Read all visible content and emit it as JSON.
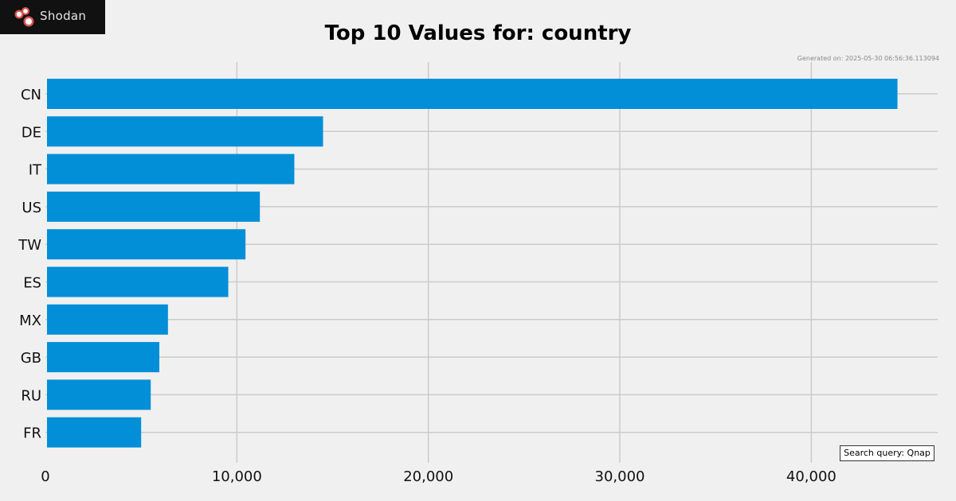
{
  "logo": {
    "text": "Shodan"
  },
  "generated_text": "Generated on: 2025-05-30 06:56:36.113094",
  "search_query_text": "Search query: Qnap",
  "colors": {
    "bar": "#028fd8",
    "background": "#f0f0f0",
    "grid": "#cbcbcb"
  },
  "chart_data": {
    "type": "bar",
    "orientation": "horizontal",
    "title": "Top 10 Values for: country",
    "xlabel": "",
    "ylabel": "",
    "categories": [
      "CN",
      "DE",
      "IT",
      "US",
      "TW",
      "ES",
      "MX",
      "GB",
      "RU",
      "FR"
    ],
    "values": [
      44500,
      14500,
      13000,
      11200,
      10450,
      9550,
      6400,
      5950,
      5500,
      5000
    ],
    "xlim": [
      0,
      46600
    ],
    "xticks": [
      0,
      10000,
      20000,
      30000,
      40000
    ],
    "xtick_labels": [
      "0",
      "10,000",
      "20,000",
      "30,000",
      "40,000"
    ],
    "grid": true,
    "legend": "none"
  }
}
